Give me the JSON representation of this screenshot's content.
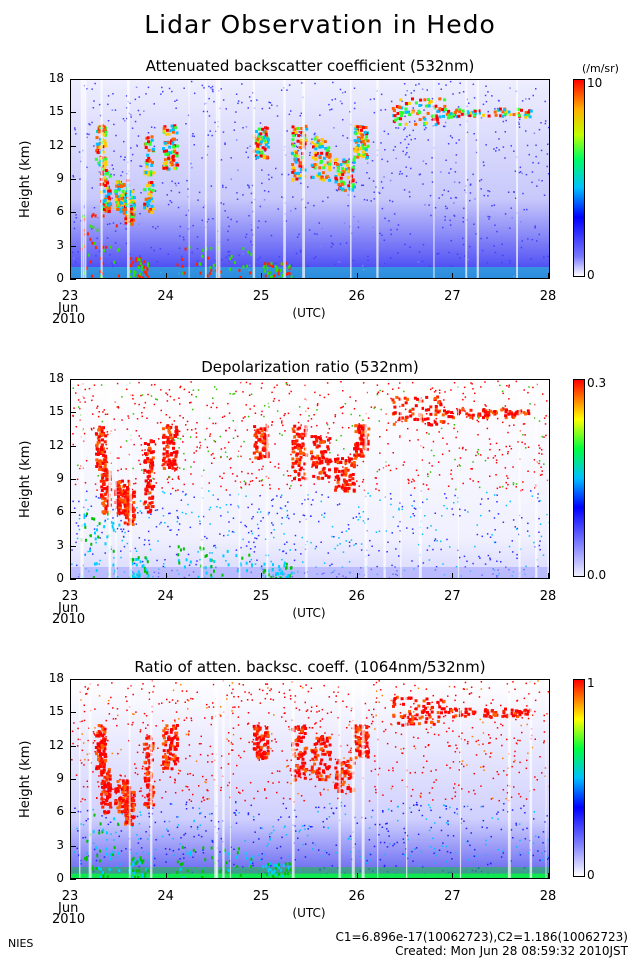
{
  "title": "Lidar Observation in Hedo",
  "footer": {
    "org": "NIES",
    "calib": "C1=6.896e-17(10062723),C2=1.186(10062723)",
    "created": "Created: Mon Jun 28 08:59:32 2010JST"
  },
  "xaxis": {
    "ticks": [
      "23",
      "24",
      "25",
      "26",
      "27",
      "28"
    ],
    "month": "Jun",
    "year": "2010",
    "label": "(UTC)"
  },
  "chart_data": [
    {
      "type": "heatmap",
      "title": "Attenuated backscatter coefficient (532nm)",
      "ylabel": "Height (km)",
      "yticks": [
        "0",
        "3",
        "6",
        "9",
        "12",
        "15",
        "18"
      ],
      "ylim": [
        0,
        18
      ],
      "xlim": [
        "2010-06-23",
        "2010-06-28"
      ],
      "colorbar": {
        "min": "0",
        "max": "10",
        "unit": "(/m/sr)"
      }
    },
    {
      "type": "heatmap",
      "title": "Depolarization ratio (532nm)",
      "ylabel": "Height (km)",
      "yticks": [
        "0",
        "3",
        "6",
        "9",
        "12",
        "15",
        "18"
      ],
      "ylim": [
        0,
        18
      ],
      "xlim": [
        "2010-06-23",
        "2010-06-28"
      ],
      "colorbar": {
        "min": "0.0",
        "max": "0.3"
      }
    },
    {
      "type": "heatmap",
      "title": "Ratio of atten. backsc. coeff. (1064nm/532nm)",
      "ylabel": "Height (km)",
      "yticks": [
        "0",
        "3",
        "6",
        "9",
        "12",
        "15",
        "18"
      ],
      "ylim": [
        0,
        18
      ],
      "xlim": [
        "2010-06-23",
        "2010-06-28"
      ],
      "colorbar": {
        "min": "0",
        "max": "1"
      }
    }
  ]
}
